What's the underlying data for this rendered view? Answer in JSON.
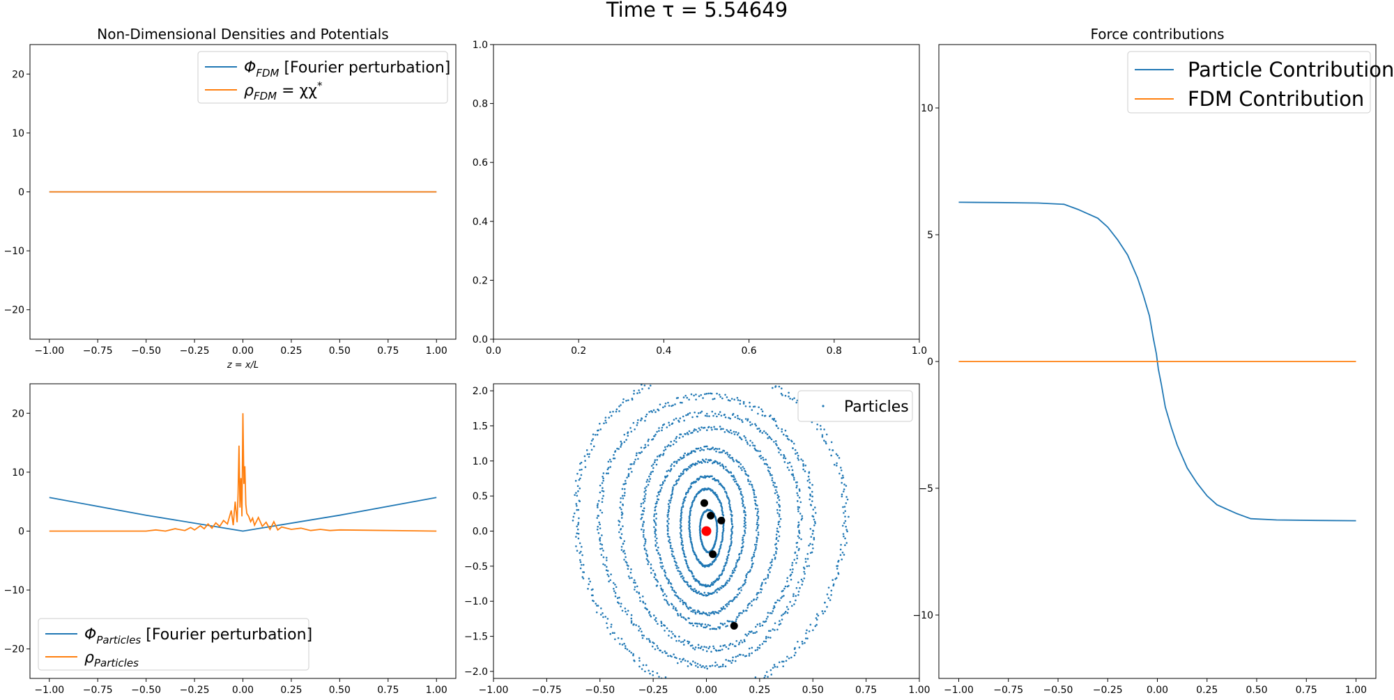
{
  "figure": {
    "suptitle": "Time τ = 5.54649"
  },
  "chart_data": [
    {
      "id": "ax1",
      "type": "line",
      "title": "Non-Dimensional Densities and Potentials",
      "xlabel": "z = x/L",
      "ylabel": "",
      "xlim": [
        -1.1,
        1.1
      ],
      "ylim": [
        -25,
        25
      ],
      "xticks": [
        -1.0,
        -0.75,
        -0.5,
        -0.25,
        0.0,
        0.25,
        0.5,
        0.75,
        1.0
      ],
      "xtick_labels": [
        "−1.00",
        "−0.75",
        "−0.50",
        "−0.25",
        "0.00",
        "0.25",
        "0.50",
        "0.75",
        "1.00"
      ],
      "yticks": [
        -20,
        -10,
        0,
        10,
        20
      ],
      "ytick_labels": [
        "−20",
        "−10",
        "0",
        "10",
        "20"
      ],
      "legend_position": "upper right",
      "series": [
        {
          "name": "Φ_FDM [Fourier perturbation]",
          "label_main": "Φ",
          "label_sub": "FDM",
          "label_rest": " [Fourier perturbation]",
          "color": "#1f77b4",
          "x": [
            -1.0,
            1.0
          ],
          "y": [
            0,
            0
          ]
        },
        {
          "name": "ρ_FDM = χχ*",
          "label_main": "ρ",
          "label_sub": "FDM",
          "label_rest": " = χχ",
          "label_sup": "*",
          "color": "#ff7f0e",
          "x": [
            -1.0,
            1.0
          ],
          "y": [
            0,
            0
          ]
        }
      ]
    },
    {
      "id": "ax2",
      "type": "line",
      "title": "",
      "xlim": [
        0,
        1
      ],
      "ylim": [
        0,
        1
      ],
      "xticks": [
        0.0,
        0.2,
        0.4,
        0.6,
        0.8,
        1.0
      ],
      "xtick_labels": [
        "0.0",
        "0.2",
        "0.4",
        "0.6",
        "0.8",
        "1.0"
      ],
      "yticks": [
        0.0,
        0.2,
        0.4,
        0.6,
        0.8,
        1.0
      ],
      "ytick_labels": [
        "0.0",
        "0.2",
        "0.4",
        "0.6",
        "0.8",
        "1.0"
      ],
      "series": []
    },
    {
      "id": "ax3",
      "type": "line",
      "title": "Force contributions",
      "xlim": [
        -1.1,
        1.1
      ],
      "ylim": [
        -12.5,
        12.5
      ],
      "xticks": [
        -1.0,
        -0.75,
        -0.5,
        -0.25,
        0.0,
        0.25,
        0.5,
        0.75,
        1.0
      ],
      "xtick_labels": [
        "−1.00",
        "−0.75",
        "−0.50",
        "−0.25",
        "0.00",
        "0.25",
        "0.50",
        "0.75",
        "1.00"
      ],
      "yticks": [
        -10,
        -5,
        0,
        5,
        10
      ],
      "ytick_labels": [
        "−10",
        "−5",
        "0",
        "5",
        "10"
      ],
      "legend_position": "upper right",
      "series": [
        {
          "name": "Particle Contribution",
          "color": "#1f77b4",
          "x": [
            -1.0,
            -0.8,
            -0.6,
            -0.47,
            -0.4,
            -0.3,
            -0.25,
            -0.2,
            -0.15,
            -0.1,
            -0.07,
            -0.04,
            -0.02,
            -0.005,
            0.0,
            0.005,
            0.02,
            0.04,
            0.07,
            0.1,
            0.15,
            0.2,
            0.25,
            0.3,
            0.4,
            0.47,
            0.6,
            0.8,
            1.0
          ],
          "y": [
            6.28,
            6.27,
            6.25,
            6.2,
            6.0,
            5.65,
            5.3,
            4.8,
            4.2,
            3.3,
            2.6,
            1.8,
            0.9,
            0.3,
            0.0,
            -0.3,
            -0.9,
            -1.8,
            -2.6,
            -3.3,
            -4.2,
            -4.8,
            -5.3,
            -5.65,
            -6.0,
            -6.2,
            -6.25,
            -6.27,
            -6.28
          ]
        },
        {
          "name": "FDM Contribution",
          "color": "#ff7f0e",
          "x": [
            -1.0,
            1.0
          ],
          "y": [
            0,
            0
          ]
        }
      ]
    },
    {
      "id": "ax4",
      "type": "line",
      "title": "",
      "xlim": [
        -1.1,
        1.1
      ],
      "ylim": [
        -25,
        25
      ],
      "xticks": [
        -1.0,
        -0.75,
        -0.5,
        -0.25,
        0.0,
        0.25,
        0.5,
        0.75,
        1.0
      ],
      "xtick_labels": [
        "−1.00",
        "−0.75",
        "−0.50",
        "−0.25",
        "0.00",
        "0.25",
        "0.50",
        "0.75",
        "1.00"
      ],
      "yticks": [
        -20,
        -10,
        0,
        10,
        20
      ],
      "ytick_labels": [
        "−20",
        "−10",
        "0",
        "10",
        "20"
      ],
      "legend_position": "lower left",
      "series": [
        {
          "name": "Φ_Particles [Fourier perturbation]",
          "label_main": "Φ",
          "label_sub": "Particles",
          "label_rest": " [Fourier perturbation]",
          "color": "#1f77b4",
          "x": [
            -1.0,
            -0.5,
            0.0,
            0.5,
            1.0
          ],
          "y": [
            5.7,
            2.7,
            0.0,
            2.7,
            5.7
          ]
        },
        {
          "name": "ρ_Particles",
          "label_main": "ρ",
          "label_sub": "Particles",
          "label_rest": "",
          "color": "#ff7f0e",
          "x": [
            -1.0,
            -0.5,
            -0.45,
            -0.4,
            -0.35,
            -0.3,
            -0.27,
            -0.25,
            -0.22,
            -0.2,
            -0.18,
            -0.16,
            -0.14,
            -0.12,
            -0.1,
            -0.08,
            -0.06,
            -0.05,
            -0.04,
            -0.03,
            -0.025,
            -0.02,
            -0.015,
            -0.01,
            -0.005,
            0.0,
            0.005,
            0.01,
            0.015,
            0.02,
            0.03,
            0.04,
            0.05,
            0.06,
            0.08,
            0.1,
            0.12,
            0.14,
            0.16,
            0.18,
            0.2,
            0.25,
            0.3,
            0.35,
            0.4,
            0.45,
            0.5,
            1.0
          ],
          "y": [
            0,
            0,
            0.2,
            0,
            0.4,
            0.1,
            0.6,
            0.2,
            0.9,
            0.4,
            1.2,
            0.5,
            1.4,
            0.8,
            1.8,
            1.2,
            3.5,
            1.0,
            5.0,
            1.5,
            6.5,
            14.5,
            4.0,
            9.0,
            2.5,
            20.0,
            8.0,
            11.0,
            4.5,
            3.0,
            2.5,
            1.6,
            2.2,
            1.0,
            2.3,
            0.8,
            1.5,
            0.3,
            1.6,
            0.2,
            0.7,
            0.3,
            0.5,
            0.1,
            0.3,
            0.1,
            0.2,
            0
          ]
        }
      ]
    },
    {
      "id": "ax5",
      "type": "scatter",
      "title": "",
      "xlim": [
        -1.0,
        1.0
      ],
      "ylim": [
        -2.1,
        2.1
      ],
      "xticks": [
        -1.0,
        -0.75,
        -0.5,
        -0.25,
        0.0,
        0.25,
        0.5,
        0.75,
        1.0
      ],
      "xtick_labels": [
        "−1.00",
        "−0.75",
        "−0.50",
        "−0.25",
        "0.00",
        "0.25",
        "0.50",
        "0.75",
        "1.00"
      ],
      "yticks": [
        -2.0,
        -1.5,
        -1.0,
        -0.5,
        0.0,
        0.5,
        1.0,
        1.5,
        2.0
      ],
      "ytick_labels": [
        "−2.0",
        "−1.5",
        "−1.0",
        "−0.5",
        "0.0",
        "0.5",
        "1.0",
        "1.5",
        "2.0"
      ],
      "legend_position": "upper right",
      "legend_label": "Particles",
      "particle_color": "#1f77b4",
      "rings": [
        {
          "a": 0.04,
          "b": 0.3,
          "cx": 0.01,
          "cy": 0.0
        },
        {
          "a": 0.08,
          "b": 0.55,
          "cx": 0.0,
          "cy": 0.05
        },
        {
          "a": 0.12,
          "b": 0.78,
          "cx": 0.0,
          "cy": 0.0
        },
        {
          "a": 0.18,
          "b": 0.95,
          "cx": 0.0,
          "cy": 0.05
        },
        {
          "a": 0.24,
          "b": 1.18,
          "cx": 0.0,
          "cy": 0.0
        },
        {
          "a": 0.32,
          "b": 1.42,
          "cx": 0.02,
          "cy": 0.05
        },
        {
          "a": 0.42,
          "b": 1.68,
          "cx": 0.02,
          "cy": 0.0
        },
        {
          "a": 0.5,
          "b": 1.92,
          "cx": 0.0,
          "cy": 0.0
        },
        {
          "a": 0.63,
          "b": 2.3,
          "cx": 0.02,
          "cy": 0.0
        }
      ],
      "marked_points": [
        {
          "x": -0.01,
          "y": 0.4,
          "color": "#000000"
        },
        {
          "x": 0.02,
          "y": 0.22,
          "color": "#000000"
        },
        {
          "x": 0.07,
          "y": 0.15,
          "color": "#000000"
        },
        {
          "x": 0.03,
          "y": -0.33,
          "color": "#000000"
        },
        {
          "x": 0.13,
          "y": -1.35,
          "color": "#000000"
        },
        {
          "x": 0.0,
          "y": 0.0,
          "color": "#ff0000",
          "big": true
        }
      ]
    }
  ]
}
